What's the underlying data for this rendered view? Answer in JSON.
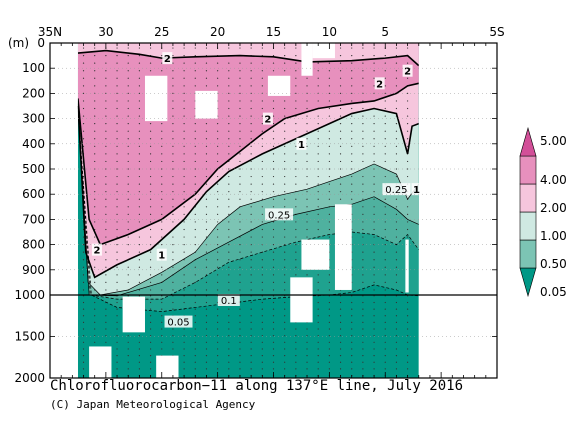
{
  "chart_data": {
    "type": "heatmap",
    "title": "Chlorofluorocarbon−11 along 137°E line, July 2016",
    "credit": "(C) Japan Meteorological Agency",
    "ylabel": "(m)",
    "x_ticks": [
      "35N",
      "30",
      "25",
      "20",
      "15",
      "10",
      "5",
      "",
      "5S"
    ],
    "x_tick_lats": [
      35,
      30,
      25,
      20,
      15,
      10,
      5,
      0,
      -5
    ],
    "y_ticks_upper": [
      0,
      100,
      200,
      300,
      400,
      500,
      600,
      700,
      800,
      900,
      1000
    ],
    "y_ticks_lower": [
      1500,
      2000
    ],
    "xlim": [
      35,
      -5
    ],
    "ylim": [
      0,
      2000
    ],
    "axis_break_depth": 1000,
    "data_lat_range": [
      32.5,
      2
    ],
    "levels": [
      0.05,
      0.5,
      1.0,
      2.0,
      4.0,
      5.0
    ],
    "colorbar_labels": [
      "5.00",
      "4.00",
      "2.00",
      "1.00",
      "0.50",
      "0.05"
    ],
    "band_colors": [
      "#009886",
      "#7cc4b4",
      "#cfe9e2",
      "#f6c6dd",
      "#e790bd",
      "#d24f98"
    ],
    "contours": [
      {
        "level": 2.0,
        "depths": [
          [
            32.5,
            40
          ],
          [
            30,
            30
          ],
          [
            27,
            45
          ],
          [
            25,
            60
          ],
          [
            22,
            55
          ],
          [
            18,
            50
          ],
          [
            15,
            55
          ],
          [
            12,
            75
          ],
          [
            8,
            70
          ],
          [
            5,
            60
          ],
          [
            3,
            50
          ],
          [
            2,
            90
          ]
        ]
      },
      {
        "level": 2.0,
        "depths": [
          [
            32.5,
            220
          ],
          [
            31.5,
            700
          ],
          [
            30.5,
            800
          ],
          [
            28,
            760
          ],
          [
            25,
            700
          ],
          [
            22,
            600
          ],
          [
            20,
            500
          ],
          [
            18,
            430
          ],
          [
            16,
            360
          ],
          [
            14,
            300
          ],
          [
            11,
            260
          ],
          [
            8,
            240
          ],
          [
            6,
            230
          ],
          [
            4,
            200
          ],
          [
            3,
            170
          ],
          [
            2,
            160
          ]
        ]
      },
      {
        "level": 1.0,
        "depths": [
          [
            32.5,
            240
          ],
          [
            31.8,
            830
          ],
          [
            31,
            930
          ],
          [
            29,
            880
          ],
          [
            26,
            820
          ],
          [
            23,
            700
          ],
          [
            21,
            590
          ],
          [
            19,
            510
          ],
          [
            16,
            440
          ],
          [
            13,
            380
          ],
          [
            10,
            320
          ],
          [
            8,
            280
          ],
          [
            6,
            260
          ],
          [
            4,
            280
          ],
          [
            3,
            440
          ],
          [
            2.6,
            330
          ],
          [
            2,
            320
          ]
        ]
      },
      {
        "level": 0.5,
        "depths": [
          [
            32.5,
            250
          ],
          [
            31.6,
            950
          ],
          [
            30.5,
            1000
          ],
          [
            28,
            980
          ],
          [
            25,
            910
          ],
          [
            22,
            830
          ],
          [
            20,
            720
          ],
          [
            18,
            650
          ],
          [
            15,
            610
          ],
          [
            12,
            580
          ],
          [
            10,
            550
          ],
          [
            8,
            520
          ],
          [
            6,
            480
          ],
          [
            4,
            520
          ],
          [
            3,
            620
          ],
          [
            2,
            560
          ]
        ]
      },
      {
        "level": 0.25,
        "depths": [
          [
            32.5,
            250
          ],
          [
            31.5,
            1000
          ],
          [
            29,
            1010
          ],
          [
            25,
            950
          ],
          [
            22,
            860
          ],
          [
            19,
            790
          ],
          [
            16,
            720
          ],
          [
            13,
            680
          ],
          [
            10,
            650
          ],
          [
            8,
            640
          ],
          [
            6,
            610
          ],
          [
            4,
            660
          ],
          [
            3,
            700
          ],
          [
            2,
            720
          ]
        ]
      },
      {
        "level": 0.1,
        "depths": [
          [
            32.5,
            250
          ],
          [
            31.4,
            1000
          ],
          [
            29,
            1050
          ],
          [
            25,
            1050
          ],
          [
            22,
            950
          ],
          [
            19,
            870
          ],
          [
            16,
            830
          ],
          [
            13,
            790
          ],
          [
            10,
            760
          ],
          [
            8,
            750
          ],
          [
            6,
            760
          ],
          [
            4,
            800
          ],
          [
            3,
            760
          ],
          [
            2,
            820
          ]
        ]
      },
      {
        "level": 0.05,
        "depths": [
          [
            32.5,
            250
          ],
          [
            31.3,
            1000
          ],
          [
            29,
            1150
          ],
          [
            25,
            1200
          ],
          [
            22,
            1150
          ],
          [
            19,
            1100
          ],
          [
            16,
            1050
          ],
          [
            13,
            1020
          ],
          [
            10,
            1000
          ],
          [
            8,
            990
          ],
          [
            6,
            960
          ],
          [
            4,
            980
          ],
          [
            3,
            1000
          ],
          [
            2,
            1010
          ]
        ]
      }
    ],
    "contour_labels": [
      {
        "text": "2",
        "lat": 24.5,
        "depth": 60
      },
      {
        "text": "2",
        "lat": 3,
        "depth": 110
      },
      {
        "text": "2",
        "lat": 5.5,
        "depth": 160
      },
      {
        "text": "2",
        "lat": 15.5,
        "depth": 300
      },
      {
        "text": "1",
        "lat": 12.5,
        "depth": 400
      },
      {
        "text": "2",
        "lat": 30.8,
        "depth": 820
      },
      {
        "text": "1",
        "lat": 25,
        "depth": 840
      },
      {
        "text": "1",
        "lat": 2.2,
        "depth": 580
      },
      {
        "text": "0.25",
        "lat": 4,
        "depth": 580
      },
      {
        "text": "0.25",
        "lat": 14.5,
        "depth": 680
      },
      {
        "text": "0.1",
        "lat": 19,
        "depth": 1060
      },
      {
        "text": "0.05",
        "lat": 23.5,
        "depth": 1320
      }
    ],
    "white_gaps": [
      [
        26.5,
        24.5,
        130,
        310
      ],
      [
        22,
        20,
        190,
        300
      ],
      [
        15.5,
        13.5,
        130,
        210
      ],
      [
        12.5,
        11.5,
        0,
        130
      ],
      [
        11.5,
        9.5,
        0,
        60
      ],
      [
        9.5,
        8.0,
        640,
        980
      ],
      [
        12.5,
        10,
        780,
        900
      ],
      [
        13.5,
        11.5,
        930,
        1330
      ],
      [
        28.5,
        26.5,
        1020,
        1450
      ],
      [
        31.5,
        29.5,
        1620,
        2000
      ],
      [
        25.5,
        23.5,
        1730,
        2000
      ],
      [
        3.2,
        2.9,
        780,
        990
      ]
    ]
  }
}
